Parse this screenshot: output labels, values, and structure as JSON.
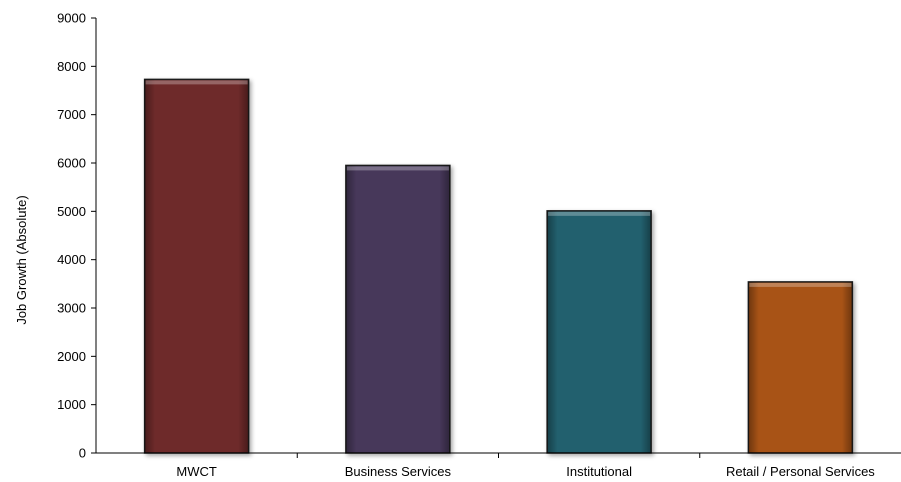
{
  "chart_data": {
    "type": "bar",
    "title": "",
    "xlabel": "",
    "ylabel": "Job Growth (Absolute)",
    "ylim": [
      0,
      9000
    ],
    "yticks": [
      0,
      1000,
      2000,
      3000,
      4000,
      5000,
      6000,
      7000,
      8000,
      9000
    ],
    "grid": false,
    "legend": "none",
    "categories": [
      "MWCT",
      "Business Services",
      "Institutional",
      "Retail / Personal Services"
    ],
    "values": [
      7730,
      5950,
      5010,
      3540
    ],
    "colors": [
      "#6e2a2a",
      "#46385a",
      "#24606e",
      "#a85212"
    ]
  }
}
